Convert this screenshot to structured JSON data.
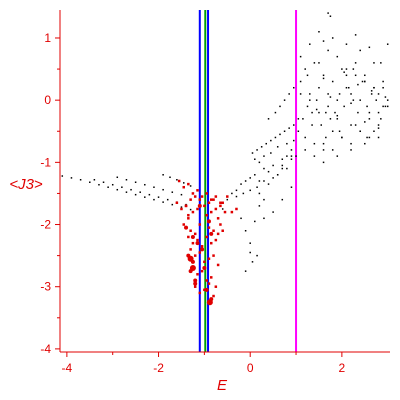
{
  "chart_data": {
    "type": "scatter",
    "xlabel": "E",
    "ylabel": "<J3>",
    "xlim": [
      -4.15,
      3.05
    ],
    "ylim": [
      -4.05,
      1.45
    ],
    "x_ticks": [
      -4,
      -2,
      0,
      2
    ],
    "x_tick_labels": [
      "-4",
      "-2",
      "0",
      "2"
    ],
    "y_ticks": [
      -4,
      -3,
      -2,
      -1,
      0,
      1
    ],
    "y_tick_labels": [
      "-4",
      "-3",
      "-2",
      "-1",
      "0",
      "1"
    ],
    "grid": false,
    "legend": "none",
    "colors": {
      "axes": "#e00000",
      "black_series": "#000000",
      "red_series": "#e00000",
      "line_blue": "#0000ff",
      "line_green": "#00a000",
      "line_magenta": "#ff00ff"
    },
    "vertical_lines": [
      {
        "x": -1.1,
        "color": "#0000ff"
      },
      {
        "x": -0.98,
        "color": "#00a000"
      },
      {
        "x": -0.92,
        "color": "#0000ff"
      },
      {
        "x": 1.0,
        "color": "#ff00ff"
      }
    ],
    "series": [
      {
        "color": "#000000",
        "marker_size": 1.5,
        "x": [
          -4.1,
          -3.9,
          -3.7,
          -3.5,
          -3.3,
          -3.1,
          -2.9,
          -2.7,
          -2.5,
          -2.3,
          -2.1,
          -1.9,
          -1.7,
          -1.5,
          -1.3,
          -3.4,
          -3.2,
          -3.0,
          -2.8,
          -2.6,
          -2.4,
          -2.2,
          -2.0,
          -1.8,
          -1.6,
          -1.4,
          -2.9,
          -2.7,
          -2.5,
          -2.3,
          -2.1,
          -1.9,
          -1.7,
          -1.5,
          -1.9,
          -1.75,
          -1.6,
          -1.45,
          -1.3,
          -0.6,
          -0.5,
          -0.4,
          -0.3,
          -0.2,
          -0.1,
          0.0,
          0.1,
          0.2,
          0.3,
          0.4,
          0.5,
          0.6,
          0.7,
          0.8,
          0.9,
          0.05,
          0.15,
          0.25,
          0.35,
          0.45,
          0.55,
          0.65,
          0.75,
          0.85,
          0.95,
          0.1,
          0.2,
          0.3,
          0.45,
          0.6,
          0.8,
          0.95,
          -0.1,
          0.0,
          0.05,
          0.15,
          0.3,
          0.5,
          0.7,
          0.9,
          0.2,
          0.4,
          0.6,
          0.7,
          0.8,
          0.9,
          -0.3,
          -0.15,
          0.0,
          0.15,
          0.3,
          0.5,
          0.7,
          0.9,
          0.0,
          -0.1,
          -0.2,
          0.1,
          0.2,
          0.3,
          0.4,
          0.55,
          0.65,
          0.75,
          0.85,
          0.95,
          1.05,
          1.15,
          1.25,
          1.35,
          1.45,
          1.55,
          1.65,
          1.75,
          1.85,
          1.95,
          2.05,
          2.15,
          2.25,
          2.35,
          2.45,
          2.55,
          2.65,
          2.75,
          2.85,
          2.95,
          1.1,
          1.2,
          1.3,
          1.4,
          1.5,
          1.6,
          1.7,
          1.8,
          1.9,
          2.0,
          2.1,
          2.2,
          2.3,
          2.4,
          2.5,
          2.6,
          2.7,
          2.8,
          2.9,
          3.0,
          1.1,
          1.3,
          1.5,
          1.7,
          1.9,
          2.1,
          2.3,
          2.5,
          2.7,
          2.9,
          1.2,
          1.4,
          1.6,
          1.8,
          2.0,
          2.2,
          2.4,
          2.6,
          2.8,
          1.0,
          1.2,
          1.4,
          1.6,
          1.8,
          2.0,
          2.2,
          2.4,
          2.6,
          2.8,
          3.0,
          1.3,
          1.5,
          1.7,
          1.9,
          2.1,
          2.3,
          2.5,
          2.7,
          2.9,
          1.5,
          1.8,
          2.1,
          2.4,
          2.7,
          3.0,
          1.6,
          1.9,
          2.2,
          2.5,
          2.8,
          1.05,
          1.35,
          1.65,
          1.95,
          2.25,
          2.55,
          2.85,
          1.1,
          1.25,
          1.45,
          1.6,
          1.75,
          1.9,
          2.05,
          2.2,
          2.35,
          2.5,
          2.65,
          2.8,
          2.95,
          1.7,
          1.75,
          1.6,
          2.3,
          2.6
        ],
        "y": [
          -1.22,
          -1.25,
          -1.28,
          -1.32,
          -1.36,
          -1.4,
          -1.44,
          -1.48,
          -1.52,
          -1.56,
          -1.6,
          -1.64,
          -1.68,
          -1.72,
          -1.76,
          -1.28,
          -1.32,
          -1.36,
          -1.4,
          -1.44,
          -1.48,
          -1.52,
          -1.56,
          -1.6,
          -1.64,
          -1.68,
          -1.24,
          -1.28,
          -1.32,
          -1.36,
          -1.4,
          -1.44,
          -1.48,
          -1.52,
          -1.2,
          -1.24,
          -1.28,
          -1.33,
          -1.38,
          -1.75,
          -1.6,
          -1.5,
          -1.45,
          -1.35,
          -1.3,
          -1.25,
          -1.2,
          -1.3,
          -1.1,
          -1.15,
          -1.05,
          -1.2,
          -0.95,
          -1.1,
          -0.9,
          -0.85,
          -0.8,
          -0.75,
          -0.7,
          -0.65,
          -0.6,
          -0.55,
          -0.5,
          -0.45,
          -0.4,
          -0.95,
          -1.0,
          -0.9,
          -0.85,
          -0.75,
          -0.7,
          -0.65,
          -2.1,
          -2.3,
          -2.6,
          -2.5,
          -1.9,
          -1.8,
          -1.6,
          -1.4,
          -1.5,
          -1.35,
          -1.2,
          -1.05,
          -0.9,
          -0.8,
          -1.55,
          -1.5,
          -1.45,
          -1.4,
          -1.3,
          -1.25,
          -1.1,
          -0.95,
          -2.45,
          -2.75,
          -1.9,
          -1.95,
          -1.7,
          -1.6,
          -0.3,
          -0.2,
          -0.1,
          0.0,
          0.1,
          0.2,
          -0.5,
          -0.3,
          -0.1,
          -0.2,
          0.0,
          -0.4,
          -0.6,
          -0.3,
          -0.2,
          0.1,
          -0.1,
          0.2,
          0.0,
          -0.2,
          0.3,
          -0.1,
          0.1,
          0.0,
          -0.3,
          -0.1,
          0.3,
          0.5,
          0.1,
          0.6,
          0.2,
          0.4,
          -0.1,
          0.3,
          0.0,
          0.5,
          0.2,
          0.1,
          0.4,
          0.0,
          0.3,
          -0.2,
          0.2,
          0.1,
          -0.1,
          0.0,
          0.7,
          0.9,
          0.6,
          0.8,
          0.7,
          0.5,
          0.6,
          0.4,
          0.2,
          0.3,
          -0.6,
          -0.7,
          -0.8,
          -0.5,
          -0.6,
          -0.4,
          -0.5,
          -0.3,
          -0.2,
          -0.9,
          -0.8,
          -0.9,
          -0.7,
          -0.8,
          -0.6,
          -0.7,
          -0.5,
          -0.6,
          -0.4,
          -0.1,
          0.0,
          -0.2,
          0.1,
          -0.3,
          0.4,
          -0.4,
          0.3,
          -0.5,
          0.2,
          1.1,
          1.0,
          0.9,
          0.8,
          0.6,
          0.9,
          -1.0,
          -0.9,
          -0.8,
          -0.7,
          -0.6,
          -0.3,
          -0.4,
          -0.2,
          -0.5,
          0.5,
          -0.6,
          0.6,
          0.1,
          0.4,
          -0.15,
          0.35,
          0.05,
          -0.25,
          0.45,
          -0.05,
          0.25,
          -0.35,
          0.15,
          -0.45,
          0.05,
          1.4,
          1.35,
          0.95,
          1.05,
          0.85
        ]
      },
      {
        "color": "#e00000",
        "marker_size": 2.5,
        "x": [
          -1.6,
          -1.5,
          -1.4,
          -1.35,
          -1.3,
          -1.25,
          -1.2,
          -1.15,
          -1.1,
          -1.0,
          -0.95,
          -0.9,
          -0.85,
          -0.8,
          -0.75,
          -0.7,
          -0.65,
          -0.6,
          -0.55,
          -0.5,
          -1.45,
          -1.4,
          -1.35,
          -1.3,
          -1.25,
          -1.2,
          -1.15,
          -1.1,
          -1.05,
          -0.95,
          -0.9,
          -0.85,
          -0.8,
          -0.75,
          -0.7,
          -0.65,
          -0.6,
          -1.55,
          -1.45,
          -1.35,
          -1.25,
          -1.15,
          -1.05,
          -0.95,
          -0.85,
          -0.75,
          -0.65,
          -1.3,
          -1.2,
          -1.1,
          -1.0,
          -0.9,
          -0.8,
          -0.7,
          -1.25,
          -1.15,
          -1.05,
          -0.95,
          -0.85,
          -0.75,
          -1.2,
          -1.1,
          -1.0,
          -0.9,
          -0.8,
          -1.4,
          -1.35,
          -0.4,
          -0.3
        ],
        "y": [
          -1.65,
          -1.75,
          -1.7,
          -1.9,
          -1.6,
          -1.8,
          -1.55,
          -1.75,
          -1.6,
          -1.7,
          -1.85,
          -1.65,
          -1.8,
          -1.6,
          -1.75,
          -1.9,
          -1.7,
          -1.65,
          -1.8,
          -1.55,
          -2.0,
          -2.05,
          -2.2,
          -2.1,
          -2.3,
          -2.15,
          -2.25,
          -2.0,
          -2.35,
          -2.2,
          -2.05,
          -2.3,
          -2.1,
          -2.25,
          -2.15,
          -2.0,
          -2.1,
          -1.3,
          -1.4,
          -1.35,
          -1.5,
          -1.45,
          -1.55,
          -1.5,
          -1.6,
          -1.55,
          -1.65,
          -2.4,
          -2.5,
          -2.45,
          -2.6,
          -2.55,
          -2.5,
          -2.65,
          -2.7,
          -2.8,
          -2.75,
          -2.9,
          -2.85,
          -3.0,
          -3.0,
          -3.1,
          -3.05,
          -2.95,
          -3.15,
          -1.7,
          -1.85,
          -1.8,
          -1.75
        ]
      },
      {
        "color": "#e00000",
        "marker_size": 4,
        "x": [
          -1.25,
          -1.3,
          -1.2,
          -1.15,
          -1.35,
          -1.2,
          -1.25,
          -0.95,
          -0.85,
          -1.0,
          -1.05,
          -0.9,
          -1.4,
          -1.1,
          -0.85
        ],
        "y": [
          -2.6,
          -2.75,
          -2.9,
          -2.3,
          -2.5,
          -2.95,
          -2.2,
          -3.05,
          -3.2,
          -2.7,
          -2.4,
          -1.95,
          -2.05,
          -1.7,
          -2.15
        ]
      },
      {
        "color": "#e00000",
        "marker_size": 6,
        "x": [
          -1.3,
          -1.25,
          -0.88
        ],
        "y": [
          -2.55,
          -2.7,
          -3.25
        ]
      }
    ]
  }
}
